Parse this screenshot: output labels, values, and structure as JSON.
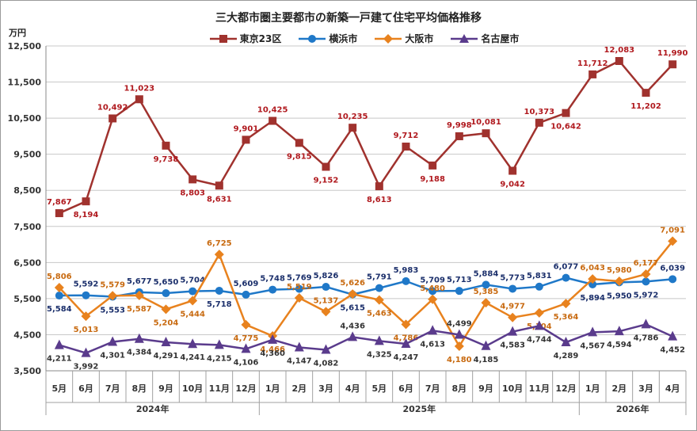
{
  "chart_data": {
    "type": "line",
    "title": "三大都市圏主要都市の新築一戸建て住宅平均価格推移",
    "ylabel": "万円",
    "ylim": [
      3500,
      12500
    ],
    "yticks": [
      "3,500",
      "4,500",
      "5,500",
      "6,500",
      "7,500",
      "8,500",
      "9,500",
      "10,500",
      "11,500",
      "12,500"
    ],
    "grid": true,
    "legend_position": "top",
    "categories": [
      "5月",
      "6月",
      "7月",
      "8月",
      "9月",
      "10月",
      "11月",
      "12月",
      "1月",
      "2月",
      "3月",
      "4月",
      "5月",
      "6月",
      "7月",
      "8月",
      "9月",
      "10月",
      "11月",
      "12月",
      "1月",
      "2月",
      "3月",
      "4月"
    ],
    "years": [
      {
        "label": "2024年",
        "start": 0,
        "end": 7
      },
      {
        "label": "2025年",
        "start": 8,
        "end": 19
      },
      {
        "label": "2026年",
        "start": 20,
        "end": 23
      }
    ],
    "series": [
      {
        "name": "東京23区",
        "color": "#a0322e",
        "marker": "square",
        "values": [
          7867,
          8194,
          10492,
          11023,
          9738,
          8803,
          8631,
          9901,
          10425,
          9815,
          9152,
          10235,
          8613,
          9712,
          9188,
          9998,
          10081,
          9042,
          10373,
          10642,
          11712,
          12083,
          11202,
          11990
        ],
        "labels": [
          "7,867",
          "8,194",
          "10,492",
          "11,023",
          "9,738",
          "8,803",
          "8,631",
          "9,901",
          "10,425",
          "9,815",
          "9,152",
          "10,235",
          "8,613",
          "9,712",
          "9,188",
          "9,998",
          "10,081",
          "9,042",
          "10,373",
          "10,642",
          "11,712",
          "12,083",
          "11,202",
          "11,990"
        ]
      },
      {
        "name": "横浜市",
        "color": "#1f78c8",
        "marker": "circle",
        "values": [
          5584,
          5592,
          5553,
          5677,
          5650,
          5704,
          5718,
          5609,
          5748,
          5769,
          5826,
          5615,
          5791,
          5983,
          5709,
          5713,
          5884,
          5773,
          5831,
          6077,
          5894,
          5950,
          5972,
          6039
        ],
        "labels": [
          "5,584",
          "5,592",
          "5,553",
          "5,677",
          "5,650",
          "5,704",
          "5,718",
          "5,609",
          "5,748",
          "5,769",
          "5,826",
          "5,615",
          "5,791",
          "5,983",
          "5,709",
          "5,713",
          "5,884",
          "5,773",
          "5,831",
          "6,077",
          "5,894",
          "5,950",
          "5,972",
          "6,039"
        ]
      },
      {
        "name": "大阪市",
        "color": "#e8821e",
        "marker": "diamond",
        "values": [
          5806,
          5013,
          5579,
          5587,
          5204,
          5444,
          6725,
          4775,
          4466,
          5519,
          5137,
          5626,
          5463,
          4786,
          5480,
          4180,
          5385,
          4977,
          5104,
          5364,
          6043,
          5980,
          6177,
          7091
        ],
        "labels": [
          "5,806",
          "5,013",
          "5,579",
          "5,587",
          "5,204",
          "5,444",
          "6,725",
          "4,775",
          "4,466",
          "5,519",
          "5,137",
          "5,626",
          "5,463",
          "4,786",
          "5,480",
          "4,180",
          "5,385",
          "4,977",
          "5,104",
          "5,364",
          "6,043",
          "5,980",
          "6,177",
          "7,091"
        ]
      },
      {
        "name": "名古屋市",
        "color": "#5a3b8c",
        "marker": "triangle",
        "values": [
          4211,
          3992,
          4301,
          4384,
          4291,
          4241,
          4215,
          4106,
          4360,
          4147,
          4082,
          4436,
          4325,
          4247,
          4613,
          4499,
          4185,
          4583,
          4744,
          4289,
          4567,
          4594,
          4786,
          4452
        ],
        "labels": [
          "4,211",
          "3,992",
          "4,301",
          "4,384",
          "4,291",
          "4,241",
          "4,215",
          "4,106",
          "4,360",
          "4,147",
          "4,082",
          "4,436",
          "4,325",
          "4,247",
          "4,613",
          "4,499",
          "4,185",
          "4,583",
          "4,744",
          "4,289",
          "4,567",
          "4,594",
          "4,786",
          "4,452"
        ]
      }
    ]
  }
}
